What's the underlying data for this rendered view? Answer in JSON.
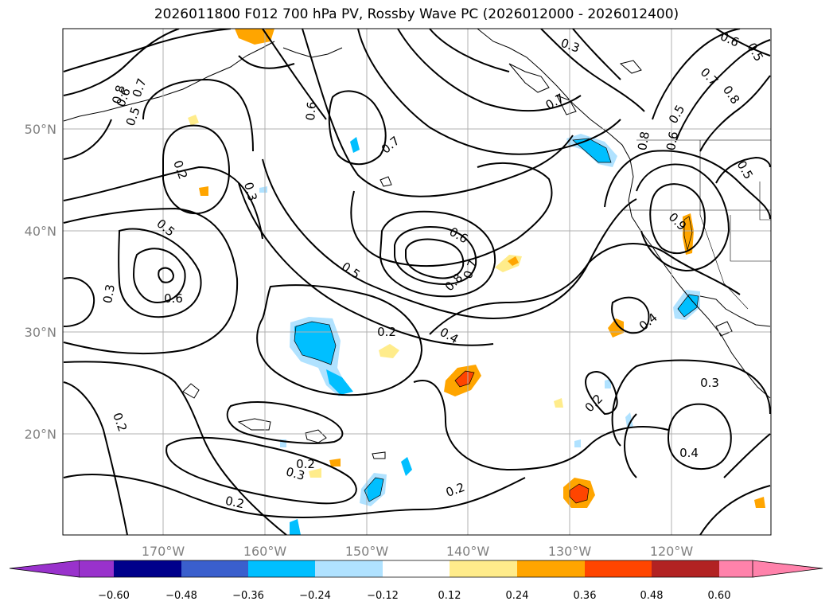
{
  "title": "2026011800 F012 700 hPa PV, Rossby Wave PC (2026012000 - 2026012400)",
  "map": {
    "lon_ticks": [
      "170°W",
      "160°W",
      "150°W",
      "140°W",
      "130°W",
      "120°W"
    ],
    "lat_ticks": [
      "50°N",
      "40°N",
      "30°N",
      "20°N"
    ],
    "contour_labels": [
      "0.3",
      "0.6",
      "0.5",
      "0.7",
      "0.8",
      "0.5",
      "0.6",
      "0.6",
      "0.7",
      "0.7",
      "0.2",
      "0.3",
      "0.5",
      "0.6",
      "0.3",
      "0.5",
      "0.6",
      "0.7",
      "0.8",
      "0.4",
      "0.2",
      "0.2",
      "0.2",
      "0.3",
      "0.2",
      "0.2",
      "0.2",
      "0.3",
      "0.4",
      "0.4",
      "0.6",
      "0.5",
      "0.7",
      "0.8",
      "0.5",
      "0.8",
      "0.9"
    ],
    "grid": true
  },
  "colorbar": {
    "ticks": [
      "−0.60",
      "−0.48",
      "−0.36",
      "−0.24",
      "−0.12",
      "0.12",
      "0.24",
      "0.36",
      "0.48",
      "0.60"
    ],
    "colors": [
      "#9932cc",
      "#00008b",
      "#3a5fcd",
      "#00bfff",
      "#b0e2ff",
      "#ffffff",
      "#ffec8b",
      "#ffa500",
      "#ff4500",
      "#b22222",
      "#ff82ab"
    ]
  }
}
